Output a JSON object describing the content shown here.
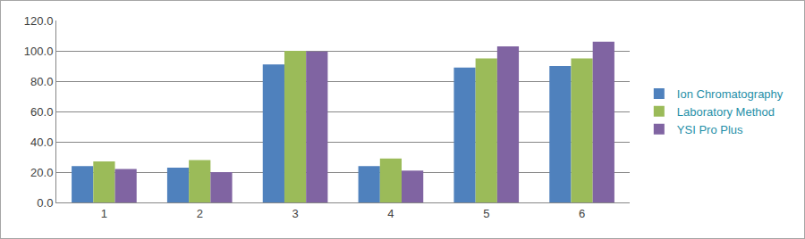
{
  "chart_data": {
    "type": "bar",
    "categories": [
      "1",
      "2",
      "3",
      "4",
      "5",
      "6"
    ],
    "series": [
      {
        "name": "Ion Chromatography",
        "color": "#4f81bd",
        "values": [
          24,
          23,
          91,
          24,
          89,
          90
        ]
      },
      {
        "name": "Laboratory Method",
        "color": "#9bbb59",
        "values": [
          27,
          28,
          100,
          29,
          95,
          95
        ]
      },
      {
        "name": "YSI Pro Plus",
        "color": "#8064a2",
        "values": [
          22,
          20,
          99.5,
          21,
          103,
          106
        ]
      }
    ],
    "ylim": [
      0,
      120
    ],
    "yticks": [
      {
        "value": 0,
        "label": "0.0"
      },
      {
        "value": 20,
        "label": "20.0"
      },
      {
        "value": 40,
        "label": "40.0"
      },
      {
        "value": 60,
        "label": "60.0"
      },
      {
        "value": 80,
        "label": "80.0"
      },
      {
        "value": 100,
        "label": "100.0"
      },
      {
        "value": 120,
        "label": "120.0"
      }
    ],
    "grid": true,
    "legend": "right"
  }
}
